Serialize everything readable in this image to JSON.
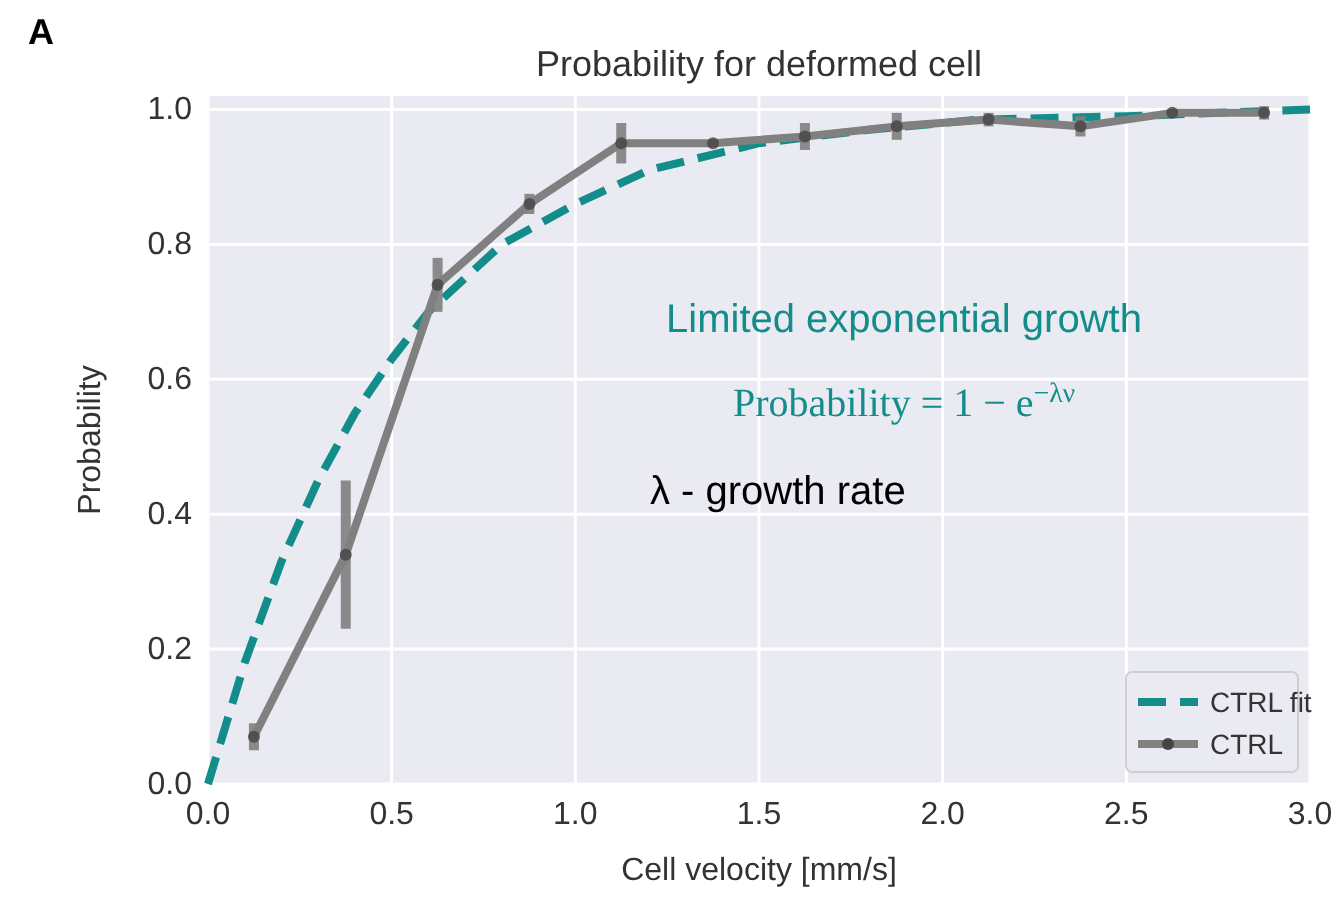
{
  "chart_data": {
    "type": "line",
    "title": "Probability for deformed cell",
    "xlabel": "Cell velocity [mm/s]",
    "ylabel": "Probability",
    "xlim": [
      0,
      3
    ],
    "xticks": [
      {
        "value": 0,
        "label": "0.0"
      },
      0.5,
      {
        "value": 1,
        "label": "1.0"
      },
      1.5,
      {
        "value": 2,
        "label": "2.0"
      },
      2.5,
      {
        "value": 3,
        "label": "3.0"
      }
    ],
    "ylim": [
      0,
      1.02
    ],
    "yticks": [
      {
        "value": 0,
        "label": "0.0"
      },
      0.2,
      0.4,
      0.6,
      0.8,
      {
        "value": 1,
        "label": "1.0"
      }
    ],
    "grid": true,
    "legend": "bottom right",
    "series": [
      {
        "name": "CTRL fit",
        "color": "#138d8a",
        "line_style": "dashed",
        "marker": "none",
        "x": [
          0,
          0.1,
          0.2,
          0.3,
          0.4,
          0.5,
          0.6,
          0.8,
          1.0,
          1.2,
          1.5,
          1.8,
          2.1,
          2.5,
          3.0
        ],
        "values": [
          0,
          0.18,
          0.33,
          0.45,
          0.55,
          0.63,
          0.7,
          0.8,
          0.86,
          0.91,
          0.95,
          0.97,
          0.985,
          0.99,
          1.0
        ]
      },
      {
        "name": "CTRL",
        "color": "#808080",
        "line_style": "solid",
        "marker": "circle",
        "x": [
          0.125,
          0.375,
          0.625,
          0.875,
          1.125,
          1.375,
          1.625,
          1.875,
          2.125,
          2.375,
          2.625,
          2.875
        ],
        "values": [
          0.07,
          0.34,
          0.74,
          0.86,
          0.95,
          0.95,
          0.96,
          0.975,
          0.985,
          0.975,
          0.995,
          0.995
        ],
        "errors": [
          0.02,
          0.11,
          0.04,
          0.015,
          0.03,
          0.005,
          0.02,
          0.02,
          0.01,
          0.015,
          0.005,
          0.01
        ]
      }
    ],
    "annotations": [
      "A",
      "Limited exponential growth",
      "Probability = 1 − e$^{−λν}$",
      "λ - growth rate"
    ]
  }
}
